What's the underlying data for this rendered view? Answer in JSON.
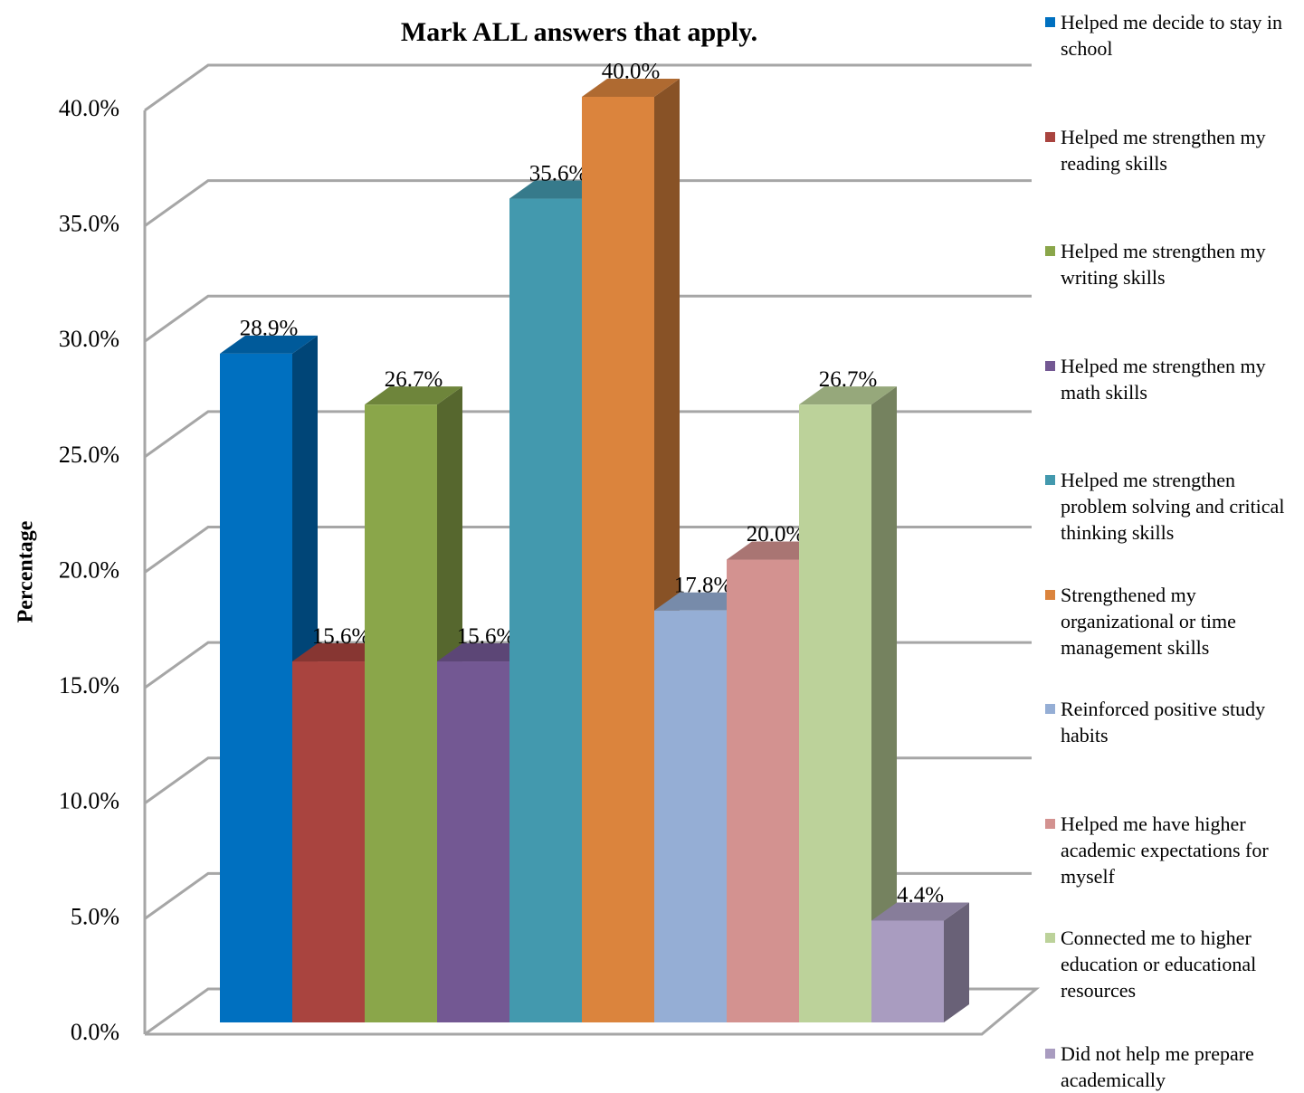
{
  "chart_data": {
    "type": "bar3d",
    "title": "Mark ALL answers that apply.",
    "y_label": "Percentage",
    "ylim": [
      0,
      40
    ],
    "yticks": [
      {
        "value": 0,
        "label": "0.0%"
      },
      {
        "value": 5,
        "label": "5.0%"
      },
      {
        "value": 10,
        "label": "10.0%"
      },
      {
        "value": 15,
        "label": "15.0%"
      },
      {
        "value": 20,
        "label": "20.0%"
      },
      {
        "value": 25,
        "label": "25.0%"
      },
      {
        "value": 30,
        "label": "30.0%"
      },
      {
        "value": 35,
        "label": "35.0%"
      },
      {
        "value": 40,
        "label": "40.0%"
      }
    ],
    "grid": true,
    "legend": "right",
    "series": [
      {
        "name": "Helped me decide to stay in school",
        "color": "#0070c0",
        "values": [
          28.9
        ],
        "value_labels": [
          "28.9%"
        ]
      },
      {
        "name": "Helped me strengthen my reading skills",
        "color": "#a9443f",
        "values": [
          15.6
        ],
        "value_labels": [
          "15.6%"
        ]
      },
      {
        "name": "Helped me strengthen my writing skills",
        "color": "#8aa64a",
        "values": [
          26.7
        ],
        "value_labels": [
          "26.7%"
        ]
      },
      {
        "name": "Helped me strengthen my math skills",
        "color": "#735893",
        "values": [
          15.6
        ],
        "value_labels": [
          "15.6%"
        ]
      },
      {
        "name": "Helped me strengthen problem solving and critical thinking skills",
        "color": "#4399ae",
        "values": [
          35.6
        ],
        "value_labels": [
          "35.6%"
        ]
      },
      {
        "name": "Strengthened my organizational or time management skills",
        "color": "#db843d",
        "values": [
          40.0
        ],
        "value_labels": [
          "40.0%"
        ]
      },
      {
        "name": "Reinforced positive study habits",
        "color": "#95aed5",
        "values": [
          17.8
        ],
        "value_labels": [
          "17.8%"
        ]
      },
      {
        "name": "Helped me have higher academic expectations for myself",
        "color": "#d39290",
        "values": [
          20.0
        ],
        "value_labels": [
          "20.0%"
        ]
      },
      {
        "name": "Connected me to higher education or educational resources",
        "color": "#bcd29a",
        "values": [
          26.7
        ],
        "value_labels": [
          "26.7%"
        ]
      },
      {
        "name": "Did not help me prepare academically",
        "color": "#a99cc0",
        "values": [
          4.4
        ],
        "value_labels": [
          "4.4%"
        ]
      }
    ]
  }
}
